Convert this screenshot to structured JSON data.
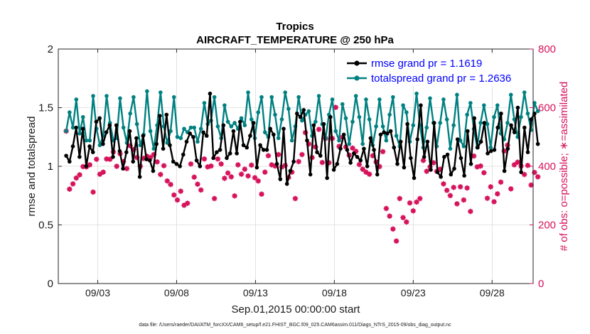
{
  "chart_data": {
    "type": "line",
    "title": "Tropics",
    "subtitle": "AIRCRAFT_TEMPERATURE @ 250 hPa",
    "xlabel": "Sep.01,2015 00:00:00 start",
    "ylabel_left": "rmse and totalspread",
    "ylabel_right": "# of obs: o=possible; ∗=assimilated",
    "footnote": "data file: /Users/raeder/DAI/ATM_forcXX/CAM6_setup/f.e21.FHIST_BGC.f09_025.CAM6assim.011/Diags_NTrS_2015-09/obs_diag_output.nc",
    "grid": true,
    "legend_position": "top-right",
    "xlim": [
      0.5,
      30.6
    ],
    "ylim_left": [
      0,
      2
    ],
    "ylim_right": [
      0,
      800
    ],
    "x_ticks": [
      3,
      8,
      13,
      18,
      23,
      28
    ],
    "x_tick_labels": [
      "09/03",
      "09/08",
      "09/13",
      "09/18",
      "09/23",
      "09/28"
    ],
    "y_ticks_left": [
      0,
      0.5,
      1,
      1.5,
      2
    ],
    "y_tick_labels_left": [
      "0",
      "0.5",
      "1",
      "1.5",
      "2"
    ],
    "y_ticks_right": [
      0,
      200,
      400,
      600,
      800
    ],
    "y_tick_labels_right": [
      "0",
      "200",
      "400",
      "600",
      "800"
    ],
    "colors": {
      "rmse": "#000000",
      "spread": "#008080",
      "obs": "#d6125b",
      "grid": "#dcdcdc"
    },
    "series": [
      {
        "name": "rmse",
        "legend": "rmse grand pr = 1.1619",
        "axis": "left",
        "values": [
          1.09,
          1.04,
          1.17,
          1.33,
          1.08,
          1.32,
          1.0,
          1.17,
          1.12,
          1.38,
          1.41,
          1.19,
          1.29,
          1.35,
          1.08,
          1.35,
          1.13,
          0.98,
          1.12,
          1.3,
          1.04,
          1.24,
          0.91,
          1.26,
          1.06,
          1.05,
          0.96,
          1.19,
          1.43,
          1.15,
          1.44,
          1.18,
          1.04,
          1.02,
          1.0,
          1.1,
          1.21,
          1.28,
          1.25,
          1.05,
          1.0,
          1.29,
          1.26,
          1.62,
          1.07,
          1.12,
          1.14,
          1.35,
          1.07,
          1.11,
          1.3,
          1.11,
          1.38,
          1.18,
          1.16,
          1.26,
          1.37,
          0.99,
          1.18,
          1.14,
          1.14,
          1.32,
          1.27,
          1.02,
          0.89,
          1.32,
          0.85,
          0.96,
          1.04,
          1.45,
          1.42,
          1.48,
          1.22,
          0.93,
          1.35,
          1.12,
          1.09,
          1.36,
          0.9,
          1.42,
          0.97,
          1.02,
          1.15,
          1.27,
          1.14,
          1.03,
          1.11,
          1.08,
          1.05,
          1.15,
          1.0,
          1.24,
          1.14,
          0.93,
          1.27,
          1.29,
          1.28,
          1.3,
          1.16,
          1.02,
          1.21,
          0.99,
          1.36,
          1.07,
          0.9,
          1.23,
          1.52,
          1.08,
          1.21,
          0.97,
          1.37,
          0.95,
          0.91,
          1.08,
          1.1,
          0.93,
          0.98,
          1.23,
          1.07,
          0.92,
          1.3,
          1.02,
          1.41,
          1.16,
          1.21,
          1.37,
          1.11,
          1.13,
          1.14,
          1.33,
          1.45,
          0.96,
          1.15,
          1.35,
          1.29,
          1.5,
          0.95,
          1.33,
          1.12,
          1.4,
          1.45,
          1.19
        ]
      },
      {
        "name": "totalspread",
        "legend": "totalspread grand pr = 1.2636",
        "axis": "left",
        "values": [
          1.3,
          1.46,
          1.33,
          1.57,
          1.28,
          1.42,
          1.22,
          1.22,
          1.6,
          1.32,
          1.18,
          1.26,
          1.6,
          1.37,
          1.22,
          1.24,
          1.58,
          1.33,
          1.2,
          1.45,
          1.59,
          1.36,
          1.18,
          1.27,
          1.64,
          1.3,
          1.15,
          1.35,
          1.63,
          1.34,
          1.2,
          1.3,
          1.59,
          1.25,
          1.24,
          1.32,
          1.29,
          1.33,
          1.33,
          1.21,
          1.32,
          1.54,
          1.36,
          1.39,
          1.59,
          1.34,
          1.24,
          1.52,
          1.38,
          1.34,
          1.37,
          1.32,
          1.41,
          1.35,
          1.63,
          1.4,
          1.24,
          1.46,
          1.59,
          1.29,
          1.25,
          1.59,
          1.44,
          1.24,
          1.4,
          1.63,
          1.49,
          1.22,
          1.34,
          1.59,
          1.39,
          1.44,
          1.47,
          1.26,
          1.38,
          1.6,
          1.36,
          1.24,
          1.44,
          1.57,
          1.3,
          1.22,
          1.53,
          1.41,
          1.19,
          1.38,
          1.6,
          1.42,
          1.19,
          1.57,
          1.4,
          1.18,
          1.34,
          1.57,
          1.34,
          1.22,
          1.44,
          1.59,
          1.26,
          1.17,
          1.52,
          1.46,
          1.21,
          1.35,
          1.62,
          1.35,
          1.16,
          1.33,
          1.58,
          1.37,
          1.17,
          1.37,
          1.57,
          1.4,
          1.15,
          1.35,
          1.61,
          1.22,
          1.17,
          1.44,
          1.54,
          1.32,
          1.16,
          1.37,
          1.52,
          1.36,
          1.16,
          1.42,
          1.52,
          1.28,
          1.23,
          1.37,
          1.61,
          1.4,
          1.25,
          1.42,
          1.63,
          1.45,
          1.31,
          1.54,
          1.47
        ]
      },
      {
        "name": "obs_possible",
        "legend": "o=possible",
        "axis": "right",
        "marker": "circle",
        "values": [
          520,
          322,
          340,
          360,
          371,
          399,
          398,
          405,
          312,
          424,
          373,
          380,
          425,
          424,
          449,
          400,
          443,
          416,
          392,
          470,
          457,
          430,
          400,
          427,
          434,
          430,
          440,
          415,
          372,
          402,
          350,
          338,
          302,
          285,
          315,
          267,
          274,
          408,
          363,
          339,
          319,
          425,
          398,
          401,
          290,
          425,
          408,
          359,
          377,
          364,
          299,
          405,
          373,
          390,
          367,
          404,
          361,
          350,
          305,
          380,
          436,
          405,
          401,
          440,
          398,
          403,
          362,
          380,
          290,
          416,
          440,
          515,
          476,
          430,
          466,
          526,
          413,
          495,
          412,
          495,
          601,
          468,
          499,
          466,
          438,
          462,
          451,
          406,
          390,
          380,
          373,
          436,
          415,
          399,
          450,
          256,
          230,
          186,
          145,
          290,
          225,
          210,
          275,
          248,
          278,
          290,
          420,
          383,
          398,
          412,
          383,
          390,
          340,
          318,
          300,
          328,
          272,
          330,
          285,
          326,
          246,
          435,
          398,
          401,
          378,
          291,
          330,
          279,
          306,
          346,
          452,
          472,
          323,
          405,
          414,
          401,
          372,
          403,
          336,
          379,
          364
        ]
      },
      {
        "name": "obs_assimilated",
        "legend": "∗=assimilated",
        "axis": "right",
        "marker": "star",
        "values": [
          520,
          322,
          340,
          360,
          371,
          399,
          398,
          405,
          312,
          424,
          373,
          380,
          425,
          424,
          449,
          400,
          443,
          416,
          392,
          470,
          457,
          430,
          400,
          427,
          434,
          430,
          440,
          415,
          372,
          402,
          350,
          338,
          302,
          285,
          315,
          267,
          274,
          408,
          363,
          339,
          319,
          425,
          398,
          401,
          290,
          425,
          408,
          359,
          377,
          364,
          299,
          405,
          373,
          390,
          367,
          404,
          361,
          350,
          305,
          380,
          436,
          405,
          401,
          440,
          398,
          403,
          362,
          380,
          290,
          416,
          440,
          515,
          476,
          430,
          466,
          526,
          413,
          495,
          412,
          495,
          601,
          468,
          499,
          466,
          438,
          462,
          451,
          406,
          390,
          380,
          373,
          436,
          415,
          399,
          450,
          256,
          230,
          186,
          145,
          290,
          225,
          210,
          275,
          248,
          278,
          290,
          420,
          383,
          398,
          412,
          383,
          390,
          340,
          318,
          300,
          328,
          272,
          330,
          285,
          326,
          246,
          435,
          398,
          401,
          378,
          291,
          330,
          279,
          306,
          346,
          452,
          472,
          323,
          405,
          414,
          401,
          372,
          403,
          336,
          379,
          364
        ]
      }
    ]
  }
}
